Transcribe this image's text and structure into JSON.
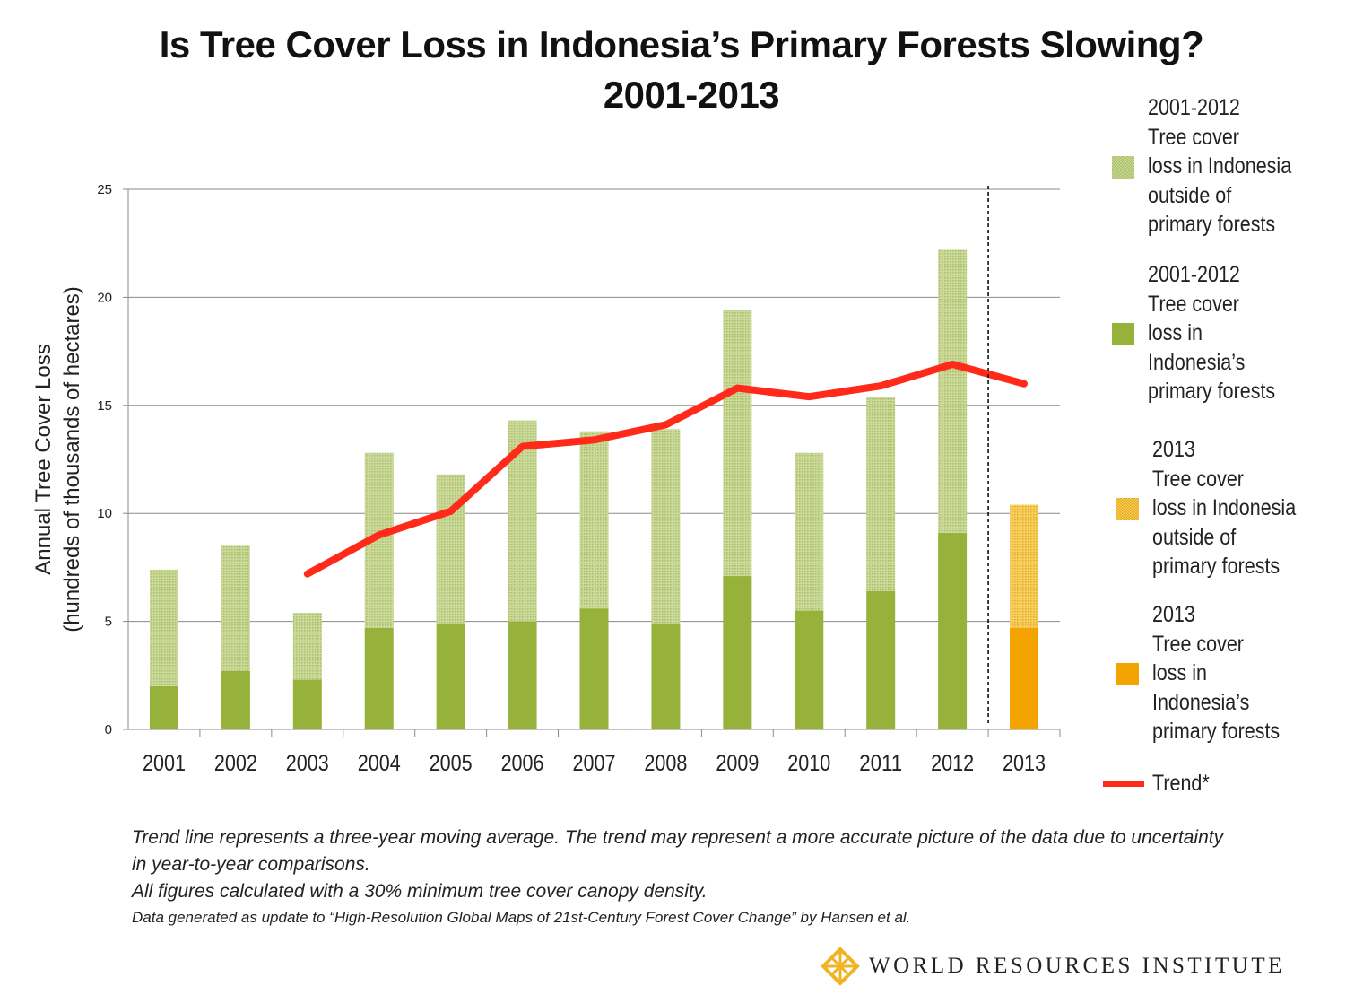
{
  "chart_data": {
    "type": "bar",
    "stacked": true,
    "title": "Is Tree Cover Loss in Indonesia’s Primary Forests Slowing?",
    "subtitle": "2001-2013",
    "ylabel": "Annual Tree Cover Loss",
    "ylabel2": "(hundreds of thousands of hectares)",
    "xlabel": "",
    "ylim": [
      0,
      25
    ],
    "yticks": [
      "0",
      "5",
      "10",
      "15",
      "20",
      "25"
    ],
    "grid": true,
    "categories": [
      "2001",
      "2002",
      "2003",
      "2004",
      "2005",
      "2006",
      "2007",
      "2008",
      "2009",
      "2010",
      "2011",
      "2012",
      "2013"
    ],
    "series": [
      {
        "name": "Tree cover loss in Indonesia's primary forests",
        "values": [
          2.0,
          2.7,
          2.3,
          4.7,
          4.9,
          5.0,
          5.6,
          4.9,
          7.1,
          5.5,
          6.4,
          9.1,
          4.7
        ]
      },
      {
        "name": "Tree cover loss in Indonesia outside of primary forests",
        "values": [
          5.4,
          5.8,
          3.1,
          8.1,
          6.9,
          9.3,
          8.2,
          9.0,
          12.3,
          7.3,
          9.0,
          13.1,
          5.7
        ]
      }
    ],
    "trend": {
      "name": "Trend*",
      "years": [
        "2003",
        "2004",
        "2005",
        "2006",
        "2007",
        "2008",
        "2009",
        "2010",
        "2011",
        "2012",
        "2013"
      ],
      "values": [
        7.2,
        9.0,
        10.1,
        13.1,
        13.4,
        14.1,
        15.8,
        15.4,
        15.9,
        16.9,
        16.0
      ]
    },
    "divider_after": "2012",
    "legend_placement": "right",
    "colors": {
      "primary_2001_2012": "#97b23a",
      "outside_2001_2012": "#c3d28e",
      "primary_2013": "#f4a400",
      "outside_2013": "#f2c34a",
      "trend": "#ff2a1a",
      "grid": "#8a8a8a"
    }
  },
  "legend": [
    {
      "lines": [
        "2001-2012",
        "Tree cover",
        "loss in Indonesia",
        "outside of",
        "primary forests"
      ]
    },
    {
      "lines": [
        "2001-2012",
        "Tree cover",
        "loss in",
        "Indonesia’s",
        "primary forests"
      ]
    },
    {
      "lines": [
        "2013",
        "Tree cover",
        "loss in Indonesia",
        "outside of",
        "primary forests"
      ]
    },
    {
      "lines": [
        "2013",
        "Tree cover",
        "loss in",
        "Indonesia’s",
        "primary forests"
      ]
    },
    {
      "lines": [
        "Trend*"
      ]
    }
  ],
  "footnotes": [
    "Trend line represents a three-year moving average. The trend may represent a more accurate picture of the data due to uncertainty",
    "in year-to-year comparisons.",
    "All figures calculated with a 30%  minimum tree cover canopy density.",
    "Data generated as update to “High-Resolution Global Maps of 21st-Century Forest Cover Change” by Hansen  et al."
  ],
  "logo": {
    "text": "WORLD RESOURCES INSTITUTE",
    "icon": "wri-knot-icon"
  }
}
